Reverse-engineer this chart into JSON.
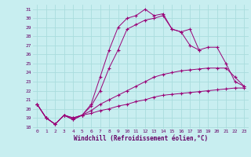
{
  "xlabel": "Windchill (Refroidissement éolien,°C)",
  "background_color": "#c8eef0",
  "grid_color": "#aadddd",
  "line_color": "#990077",
  "xlim": [
    -0.5,
    23.5
  ],
  "ylim": [
    17.8,
    31.5
  ],
  "yticks": [
    18,
    19,
    20,
    21,
    22,
    23,
    24,
    25,
    26,
    27,
    28,
    29,
    30,
    31
  ],
  "xticks": [
    0,
    1,
    2,
    3,
    4,
    5,
    6,
    7,
    8,
    9,
    10,
    11,
    12,
    13,
    14,
    15,
    16,
    17,
    18,
    19,
    20,
    21,
    22,
    23
  ],
  "series": [
    {
      "x": [
        0,
        1,
        2,
        3,
        4,
        5,
        6,
        7,
        8,
        9,
        10,
        11,
        12,
        13,
        14,
        15,
        16,
        17,
        18,
        19,
        20,
        21,
        22,
        23
      ],
      "y": [
        20.5,
        19.0,
        18.3,
        19.3,
        19.0,
        19.3,
        19.5,
        19.8,
        20.0,
        20.3,
        20.5,
        20.8,
        21.0,
        21.3,
        21.5,
        21.6,
        21.7,
        21.8,
        21.9,
        22.0,
        22.1,
        22.2,
        22.3,
        22.3
      ]
    },
    {
      "x": [
        0,
        1,
        2,
        3,
        4,
        5,
        6,
        7,
        8,
        9,
        10,
        11,
        12,
        13,
        14,
        15,
        16,
        17,
        18,
        19,
        20,
        21,
        22,
        23
      ],
      "y": [
        20.5,
        19.0,
        18.3,
        19.3,
        19.0,
        19.3,
        19.8,
        20.5,
        21.0,
        21.5,
        22.0,
        22.5,
        23.0,
        23.5,
        23.8,
        24.0,
        24.2,
        24.3,
        24.4,
        24.5,
        24.5,
        24.5,
        23.5,
        22.5
      ]
    },
    {
      "x": [
        0,
        1,
        2,
        3,
        4,
        5,
        6,
        7,
        8,
        9,
        10,
        11,
        12,
        13,
        14,
        15,
        16,
        17,
        18,
        19,
        20,
        21,
        22,
        23
      ],
      "y": [
        20.5,
        19.0,
        18.3,
        19.3,
        18.8,
        19.3,
        20.3,
        22.0,
        24.5,
        26.5,
        28.8,
        29.3,
        29.8,
        30.0,
        30.3,
        28.8,
        28.5,
        28.8,
        26.5,
        26.8,
        26.8,
        25.0,
        23.0,
        22.5
      ]
    },
    {
      "x": [
        0,
        1,
        2,
        3,
        4,
        5,
        6,
        7,
        8,
        9,
        10,
        11,
        12,
        13,
        14,
        15,
        16,
        17,
        18
      ],
      "y": [
        20.5,
        19.0,
        18.3,
        19.3,
        18.8,
        19.3,
        20.5,
        23.5,
        26.5,
        29.0,
        30.0,
        30.3,
        31.0,
        30.3,
        30.5,
        28.8,
        28.5,
        27.0,
        26.5
      ]
    }
  ]
}
